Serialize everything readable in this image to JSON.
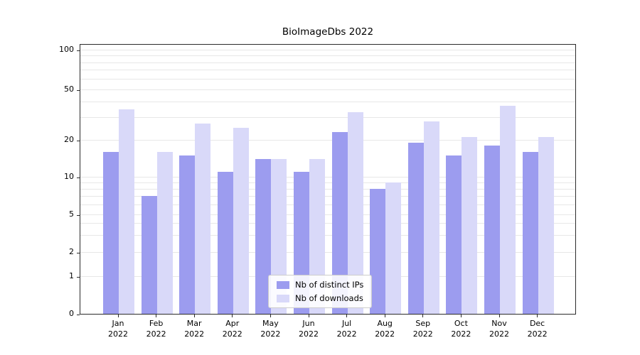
{
  "chart_data": {
    "type": "bar",
    "title": "BioImageDbs 2022",
    "categories": [
      "Jan",
      "Feb",
      "Mar",
      "Apr",
      "May",
      "Jun",
      "Jul",
      "Aug",
      "Sep",
      "Oct",
      "Nov",
      "Dec"
    ],
    "year": "2022",
    "series": [
      {
        "name": "Nb of distinct IPs",
        "color": "#9c9cef",
        "values": [
          16,
          7,
          15,
          11,
          14,
          11,
          23,
          8,
          19,
          15,
          18,
          16
        ]
      },
      {
        "name": "Nb of downloads",
        "color": "#d9d9f9",
        "values": [
          35,
          16,
          27,
          25,
          14,
          14,
          33,
          9,
          28,
          21,
          37,
          21
        ]
      }
    ],
    "yscale": "symlog",
    "ylim": [
      0,
      100
    ],
    "yticks": [
      0,
      1,
      2,
      5,
      10,
      20,
      50,
      100
    ],
    "minor_grid": [
      1,
      2,
      3,
      4,
      5,
      6,
      7,
      8,
      9,
      10,
      20,
      30,
      40,
      50,
      60,
      70,
      80,
      90,
      100
    ],
    "legend": {
      "position": "lower center",
      "labels": [
        "Nb of distinct IPs",
        "Nb of downloads"
      ]
    },
    "colors": {
      "grid": "#e7e7e7",
      "axis": "#2b2b2b",
      "background": "#ffffff"
    }
  }
}
